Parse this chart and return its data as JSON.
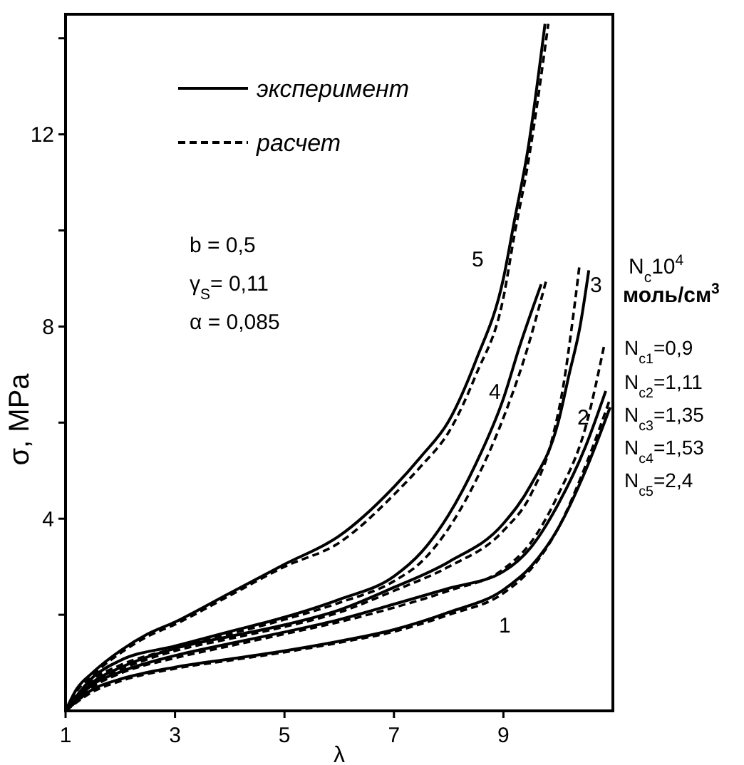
{
  "chart_data": {
    "type": "line",
    "xlabel": "λ",
    "ylabel": "σ, MPa",
    "xlim": [
      1,
      11
    ],
    "ylim": [
      0,
      14.5
    ],
    "xticks": [
      1,
      3,
      5,
      7,
      9
    ],
    "yticks": [
      {
        "value": 2,
        "label": null
      },
      4,
      {
        "value": 6,
        "label": null
      },
      8,
      {
        "value": 10,
        "label": null
      },
      12,
      {
        "value": 14,
        "label": null
      }
    ],
    "legend": "top left",
    "series": [
      {
        "name": "эксперимент",
        "color": "#000000",
        "line_style": "solid",
        "x": [
          1,
          1.2,
          1.5,
          2,
          2.5,
          3,
          4,
          5,
          6,
          7,
          7.5,
          8,
          8.5,
          9,
          9.2,
          9.45,
          9.76
        ],
        "values": [
          0,
          0.45,
          0.8,
          1.25,
          1.6,
          1.85,
          2.45,
          3.05,
          3.64,
          4.66,
          5.3,
          6.03,
          7.3,
          9.0,
          10.2,
          11.7,
          14.3
        ]
      },
      {
        "name": "расчет",
        "color": "#000000",
        "line_style": "dashed",
        "x": [
          1,
          1.2,
          1.5,
          2,
          2.5,
          3,
          4,
          5,
          6,
          7,
          7.5,
          8,
          8.5,
          9,
          9.2,
          9.45,
          9.82
        ],
        "values": [
          0,
          0.4,
          0.75,
          1.2,
          1.55,
          1.8,
          2.4,
          3.0,
          3.5,
          4.5,
          5.1,
          5.8,
          7.0,
          8.6,
          9.9,
          11.4,
          14.3
        ]
      },
      {
        "color": "#000000",
        "line_style": "solid",
        "x": [
          1,
          1.5,
          2,
          3,
          4,
          5,
          6,
          7,
          7.5,
          8,
          8.5,
          9,
          9.3,
          9.69
        ],
        "values": [
          0,
          0.7,
          1.05,
          1.35,
          1.65,
          1.95,
          2.32,
          2.8,
          3.3,
          4.08,
          5.15,
          6.5,
          7.6,
          8.88
        ]
      },
      {
        "color": "#000000",
        "line_style": "dashed",
        "x": [
          1,
          1.5,
          2,
          3,
          4,
          5,
          6,
          7,
          7.5,
          8,
          8.5,
          9,
          9.4,
          9.78
        ],
        "values": [
          0,
          0.65,
          0.95,
          1.3,
          1.6,
          1.9,
          2.25,
          2.7,
          3.1,
          3.8,
          4.8,
          6.1,
          7.4,
          8.95
        ]
      },
      {
        "color": "#000000",
        "line_style": "solid",
        "x": [
          1,
          1.5,
          2,
          3,
          4,
          5,
          6,
          7,
          8,
          9,
          9.5,
          10,
          10.2,
          10.4,
          10.56
        ],
        "values": [
          0,
          0.6,
          0.9,
          1.3,
          1.55,
          1.79,
          2.1,
          2.57,
          3.1,
          3.9,
          4.7,
          6.0,
          7.0,
          8.0,
          9.17
        ]
      },
      {
        "color": "#000000",
        "line_style": "dashed",
        "x": [
          1,
          1.5,
          2,
          3,
          4,
          5,
          6,
          7,
          8,
          9,
          9.5,
          9.9,
          10.1,
          10.25,
          10.39
        ],
        "values": [
          0,
          0.55,
          0.85,
          1.25,
          1.5,
          1.75,
          2.05,
          2.5,
          3.0,
          3.75,
          4.5,
          5.7,
          6.8,
          8.0,
          9.27
        ]
      },
      {
        "color": "#000000",
        "line_style": "solid",
        "x": [
          1,
          1.5,
          2,
          3,
          4,
          5,
          6,
          7,
          8,
          9,
          9.5,
          10,
          10.5,
          10.87
        ],
        "values": [
          0,
          0.55,
          0.81,
          1.15,
          1.4,
          1.64,
          1.9,
          2.22,
          2.55,
          2.9,
          3.4,
          4.3,
          5.5,
          6.66
        ]
      },
      {
        "color": "#000000",
        "line_style": "dashed",
        "x": [
          1,
          1.5,
          2,
          3,
          4,
          5,
          6,
          7,
          8,
          9,
          9.5,
          10,
          10.5,
          10.84
        ],
        "values": [
          0,
          0.5,
          0.78,
          1.1,
          1.35,
          1.6,
          1.85,
          2.15,
          2.5,
          2.95,
          3.5,
          4.5,
          5.9,
          7.6
        ]
      },
      {
        "color": "#000000",
        "line_style": "solid",
        "x": [
          1,
          1.5,
          2,
          3,
          4,
          5,
          6,
          7,
          8,
          9,
          9.5,
          10,
          10.5,
          10.95
        ],
        "values": [
          0,
          0.45,
          0.66,
          0.91,
          1.08,
          1.25,
          1.45,
          1.69,
          2.05,
          2.52,
          3.0,
          3.8,
          5.0,
          6.32
        ]
      },
      {
        "color": "#000000",
        "line_style": "dashed",
        "x": [
          1,
          1.5,
          2,
          3,
          4,
          5,
          6,
          7,
          8,
          9,
          9.5,
          10,
          10.5,
          10.95
        ],
        "values": [
          0,
          0.4,
          0.62,
          0.88,
          1.05,
          1.22,
          1.42,
          1.65,
          2.0,
          2.45,
          2.95,
          3.8,
          5.1,
          6.5
        ]
      }
    ],
    "annotations": [
      "5",
      "4",
      "3",
      "2",
      "1",
      "b = 0,5",
      "γ$_{S}$= 0,11",
      "α = 0,085",
      "N$_{c}$10$^{4}$",
      "моль/см$^{3}$",
      "N$_{c1}$=0,9",
      "N$_{c2}$=1,11",
      "N$_{c3}$=1,35",
      "N$_{c4}$=1,53",
      "N$_{c5}$=2,4"
    ]
  }
}
